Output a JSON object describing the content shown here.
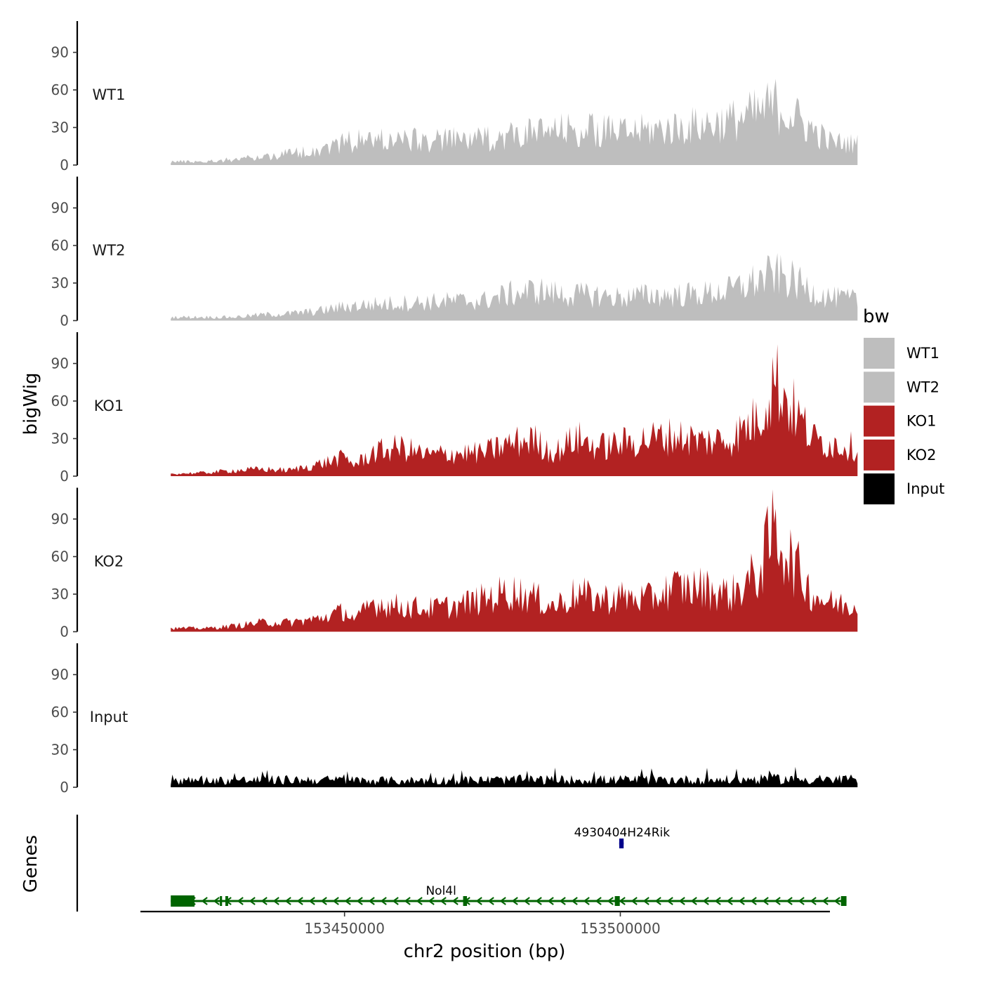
{
  "chart_data": {
    "type": "area",
    "y_title": "bigWig",
    "genes_title": "Genes",
    "xlabel": "chr2 position (bp)",
    "xlim": [
      153413000,
      153538000
    ],
    "x_ticks": [
      153450000,
      153500000
    ],
    "x_tick_labels": [
      "153450000",
      "153500000"
    ],
    "ylim": [
      0,
      115
    ],
    "y_ticks": [
      0,
      30,
      60,
      90
    ],
    "y_tick_labels": [
      "0",
      "30",
      "60",
      "90"
    ],
    "data_range": [
      153418500,
      153543000
    ],
    "legend": {
      "title": "bw",
      "placement": "right",
      "items": [
        {
          "label": "WT1",
          "color": "#bebebe"
        },
        {
          "label": "WT2",
          "color": "#bebebe"
        },
        {
          "label": "KO1",
          "color": "#b22222"
        },
        {
          "label": "KO2",
          "color": "#b22222"
        },
        {
          "label": "Input",
          "color": "#000000"
        }
      ]
    },
    "series": [
      {
        "name": "WT1",
        "color": "#bebebe",
        "profile": [
          [
            153418500,
            3
          ],
          [
            153425000,
            3
          ],
          [
            153430000,
            5
          ],
          [
            153435000,
            7
          ],
          [
            153440000,
            10
          ],
          [
            153445000,
            13
          ],
          [
            153450000,
            20
          ],
          [
            153455000,
            22
          ],
          [
            153460000,
            22
          ],
          [
            153465000,
            21
          ],
          [
            153470000,
            22
          ],
          [
            153475000,
            22
          ],
          [
            153480000,
            26
          ],
          [
            153485000,
            28
          ],
          [
            153490000,
            30
          ],
          [
            153495000,
            30
          ],
          [
            153500000,
            28
          ],
          [
            153505000,
            30
          ],
          [
            153510000,
            32
          ],
          [
            153515000,
            35
          ],
          [
            153520000,
            38
          ],
          [
            153525000,
            45
          ],
          [
            153528000,
            52
          ],
          [
            153531000,
            44
          ],
          [
            153535000,
            30
          ],
          [
            153538000,
            20
          ],
          [
            153543000,
            18
          ]
        ]
      },
      {
        "name": "WT2",
        "color": "#bebebe",
        "profile": [
          [
            153418500,
            3
          ],
          [
            153425000,
            3
          ],
          [
            153430000,
            3
          ],
          [
            153435000,
            5
          ],
          [
            153440000,
            6
          ],
          [
            153445000,
            8
          ],
          [
            153450000,
            12
          ],
          [
            153455000,
            14
          ],
          [
            153460000,
            15
          ],
          [
            153465000,
            16
          ],
          [
            153470000,
            17
          ],
          [
            153475000,
            17
          ],
          [
            153480000,
            23
          ],
          [
            153485000,
            26
          ],
          [
            153490000,
            22
          ],
          [
            153495000,
            22
          ],
          [
            153500000,
            20
          ],
          [
            153505000,
            22
          ],
          [
            153510000,
            22
          ],
          [
            153515000,
            23
          ],
          [
            153520000,
            26
          ],
          [
            153525000,
            35
          ],
          [
            153528000,
            40
          ],
          [
            153531000,
            35
          ],
          [
            153535000,
            25
          ],
          [
            153538000,
            20
          ],
          [
            153543000,
            18
          ]
        ]
      },
      {
        "name": "KO1",
        "color": "#b22222",
        "profile": [
          [
            153418500,
            2
          ],
          [
            153425000,
            3
          ],
          [
            153430000,
            5
          ],
          [
            153435000,
            6
          ],
          [
            153440000,
            5
          ],
          [
            153445000,
            10
          ],
          [
            153450000,
            16
          ],
          [
            153452000,
            10
          ],
          [
            153455000,
            20
          ],
          [
            153460000,
            25
          ],
          [
            153465000,
            18
          ],
          [
            153470000,
            20
          ],
          [
            153475000,
            20
          ],
          [
            153480000,
            28
          ],
          [
            153484000,
            32
          ],
          [
            153488000,
            20
          ],
          [
            153492000,
            33
          ],
          [
            153496000,
            25
          ],
          [
            153500000,
            28
          ],
          [
            153505000,
            32
          ],
          [
            153510000,
            35
          ],
          [
            153515000,
            30
          ],
          [
            153520000,
            32
          ],
          [
            153525000,
            50
          ],
          [
            153528000,
            85
          ],
          [
            153531000,
            60
          ],
          [
            153535000,
            32
          ],
          [
            153538000,
            28
          ],
          [
            153543000,
            25
          ]
        ]
      },
      {
        "name": "KO2",
        "color": "#b22222",
        "profile": [
          [
            153418500,
            3
          ],
          [
            153425000,
            3
          ],
          [
            153430000,
            5
          ],
          [
            153435000,
            8
          ],
          [
            153440000,
            8
          ],
          [
            153445000,
            11
          ],
          [
            153450000,
            18
          ],
          [
            153452000,
            10
          ],
          [
            153455000,
            25
          ],
          [
            153460000,
            22
          ],
          [
            153465000,
            20
          ],
          [
            153470000,
            22
          ],
          [
            153475000,
            28
          ],
          [
            153480000,
            35
          ],
          [
            153484000,
            30
          ],
          [
            153488000,
            22
          ],
          [
            153492000,
            33
          ],
          [
            153496000,
            28
          ],
          [
            153500000,
            30
          ],
          [
            153505000,
            28
          ],
          [
            153510000,
            38
          ],
          [
            153515000,
            38
          ],
          [
            153520000,
            32
          ],
          [
            153525000,
            50
          ],
          [
            153528000,
            90
          ],
          [
            153531000,
            62
          ],
          [
            153535000,
            32
          ],
          [
            153538000,
            25
          ],
          [
            153543000,
            22
          ]
        ]
      },
      {
        "name": "Input",
        "color": "#000000",
        "profile": [
          [
            153418500,
            7
          ],
          [
            153443000,
            8
          ],
          [
            153460000,
            7
          ],
          [
            153480000,
            8
          ],
          [
            153500000,
            8
          ],
          [
            153520000,
            8
          ],
          [
            153530000,
            9
          ],
          [
            153543000,
            7
          ]
        ]
      }
    ],
    "genes": [
      {
        "name": "Nol4l",
        "color": "#006400",
        "strand": "-",
        "start": 153418500,
        "end": 153541000,
        "label_x": 153467500,
        "exons": [
          [
            153418500,
            153422800
          ],
          [
            153427400,
            153427800
          ],
          [
            153428400,
            153428900
          ],
          [
            153471500,
            153472200
          ],
          [
            153499000,
            153499900
          ],
          [
            153540000,
            153541000
          ]
        ]
      },
      {
        "name": "4930404H24Rik",
        "color": "#00008b",
        "strand": "+",
        "start": 153499800,
        "end": 153500600,
        "label_x": 153500300,
        "exons": [
          [
            153499800,
            153500600
          ]
        ]
      }
    ]
  }
}
